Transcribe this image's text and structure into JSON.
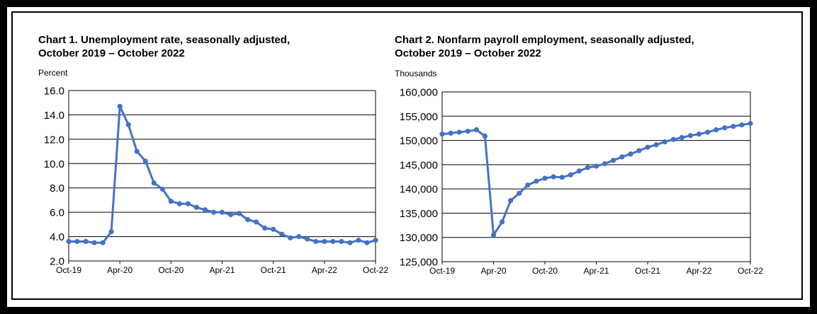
{
  "chart_data": [
    {
      "type": "line",
      "title_line1": "Chart 1. Unemployment rate, seasonally adjusted,",
      "title_line2": "October 2019 – October 2022",
      "ylabel": "Percent",
      "xlabel": "",
      "ylim": [
        2.0,
        16.0
      ],
      "yticks": [
        "16.0",
        "14.0",
        "12.0",
        "10.0",
        "8.0",
        "6.0",
        "4.0",
        "2.0"
      ],
      "ytick_values": [
        16,
        14,
        12,
        10,
        8,
        6,
        4,
        2
      ],
      "xticks": [
        "Oct-19",
        "Apr-20",
        "Oct-20",
        "Apr-21",
        "Oct-21",
        "Apr-22",
        "Oct-22"
      ],
      "grid": true,
      "line_color": "#4472C4",
      "series": [
        {
          "values": [
            3.6,
            3.6,
            3.6,
            3.5,
            3.5,
            4.4,
            14.7,
            13.2,
            11.0,
            10.2,
            8.4,
            7.9,
            6.9,
            6.7,
            6.7,
            6.4,
            6.2,
            6.0,
            6.0,
            5.8,
            5.9,
            5.4,
            5.2,
            4.7,
            4.6,
            4.2,
            3.9,
            4.0,
            3.8,
            3.6,
            3.6,
            3.6,
            3.6,
            3.5,
            3.7,
            3.5,
            3.7
          ]
        }
      ]
    },
    {
      "type": "line",
      "title_line1": "Chart 2. Nonfarm payroll employment, seasonally adjusted,",
      "title_line2": "October 2019 – October 2022",
      "ylabel": "Thousands",
      "xlabel": "",
      "ylim": [
        125000,
        160000
      ],
      "yticks": [
        "160,000",
        "155,000",
        "150,000",
        "145,000",
        "140,000",
        "135,000",
        "130,000",
        "125,000"
      ],
      "ytick_values": [
        160000,
        155000,
        150000,
        145000,
        140000,
        135000,
        130000,
        125000
      ],
      "xticks": [
        "Oct-19",
        "Apr-20",
        "Oct-20",
        "Apr-21",
        "Oct-21",
        "Apr-22",
        "Oct-22"
      ],
      "grid": true,
      "line_color": "#4472C4",
      "series": [
        {
          "values": [
            151300,
            151500,
            151700,
            151900,
            152200,
            150900,
            130500,
            133200,
            137600,
            139100,
            140800,
            141600,
            142200,
            142500,
            142400,
            142900,
            143700,
            144400,
            144700,
            145200,
            145900,
            146600,
            147200,
            147900,
            148600,
            149100,
            149700,
            150200,
            150600,
            151000,
            151300,
            151700,
            152200,
            152600,
            152900,
            153200,
            153500
          ]
        }
      ]
    }
  ]
}
